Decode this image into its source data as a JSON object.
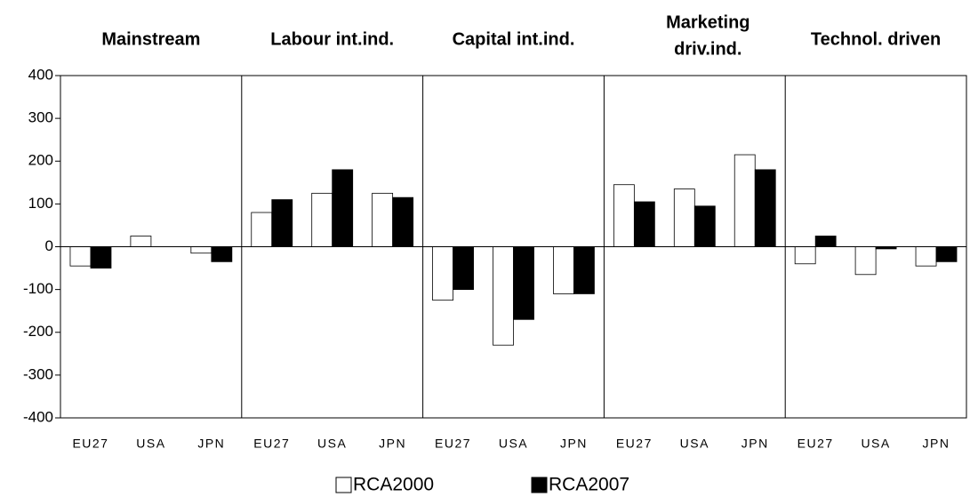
{
  "chart_data": {
    "type": "bar",
    "panels": [
      [
        "Mainstream"
      ],
      [
        "Labour int.ind."
      ],
      [
        "Capital int.ind."
      ],
      [
        "Marketing",
        "driv.ind."
      ],
      [
        "Technol. driven"
      ]
    ],
    "categories": [
      "EU27",
      "USA",
      "JPN",
      "EU27",
      "USA",
      "JPN",
      "EU27",
      "USA",
      "JPN",
      "EU27",
      "USA",
      "JPN",
      "EU27",
      "USA",
      "JPN"
    ],
    "series": [
      {
        "name": "RCA2000",
        "color": "#ffffff",
        "values": [
          -45,
          25,
          -15,
          80,
          125,
          125,
          -125,
          -230,
          -110,
          145,
          135,
          215,
          -40,
          -65,
          -45
        ]
      },
      {
        "name": "RCA2007",
        "color": "#000000",
        "values": [
          -50,
          0,
          -35,
          110,
          180,
          115,
          -100,
          -170,
          -110,
          105,
          95,
          180,
          25,
          -5,
          -35
        ]
      }
    ],
    "ylim": [
      -400,
      400
    ],
    "yticks": [
      -400,
      -300,
      -200,
      -100,
      0,
      100,
      200,
      300,
      400
    ]
  }
}
